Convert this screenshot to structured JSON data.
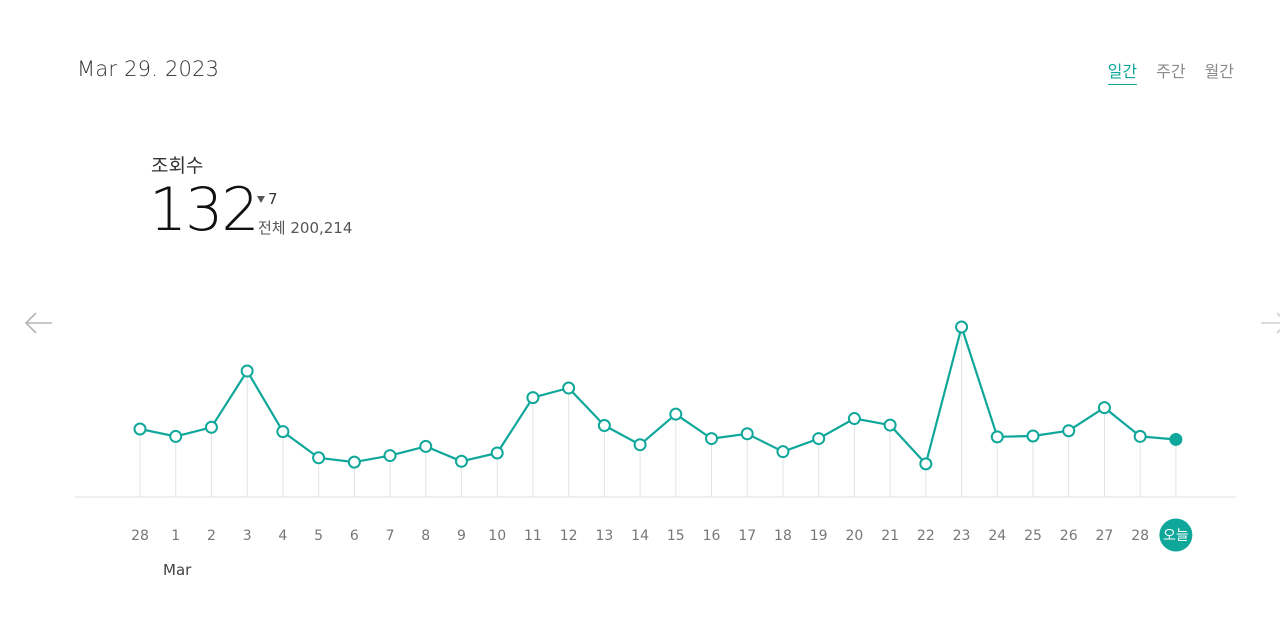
{
  "header": {
    "date": "Mar 29. 2023",
    "tabs": [
      {
        "label": "일간",
        "active": true
      },
      {
        "label": "주간",
        "active": false
      },
      {
        "label": "월간",
        "active": false
      }
    ]
  },
  "metric": {
    "label": "조회수",
    "value": "132",
    "change": "7",
    "change_direction": "down",
    "total_label": "전체 200,214"
  },
  "nav": {
    "prev_icon": "arrow-left-icon",
    "next_icon": "arrow-right-icon"
  },
  "colors": {
    "accent": "#10a79b",
    "line": "#10a79b",
    "grid": "#e3e3e3",
    "tick": "#777777"
  },
  "chart_data": {
    "type": "line",
    "x": [
      "28",
      "1",
      "2",
      "3",
      "4",
      "5",
      "6",
      "7",
      "8",
      "9",
      "10",
      "11",
      "12",
      "13",
      "14",
      "15",
      "16",
      "17",
      "18",
      "19",
      "20",
      "21",
      "22",
      "23",
      "24",
      "25",
      "26",
      "27",
      "28",
      "오늘"
    ],
    "series": [
      {
        "values": [
          156,
          139,
          160,
          289,
          150,
          90,
          80,
          95,
          116,
          82,
          101,
          228,
          250,
          164,
          120,
          190,
          134,
          145,
          104,
          134,
          180,
          165,
          76,
          390,
          138,
          140,
          152,
          205,
          139,
          132
        ]
      }
    ],
    "month_label": "Mar",
    "highlight_last": true
  }
}
